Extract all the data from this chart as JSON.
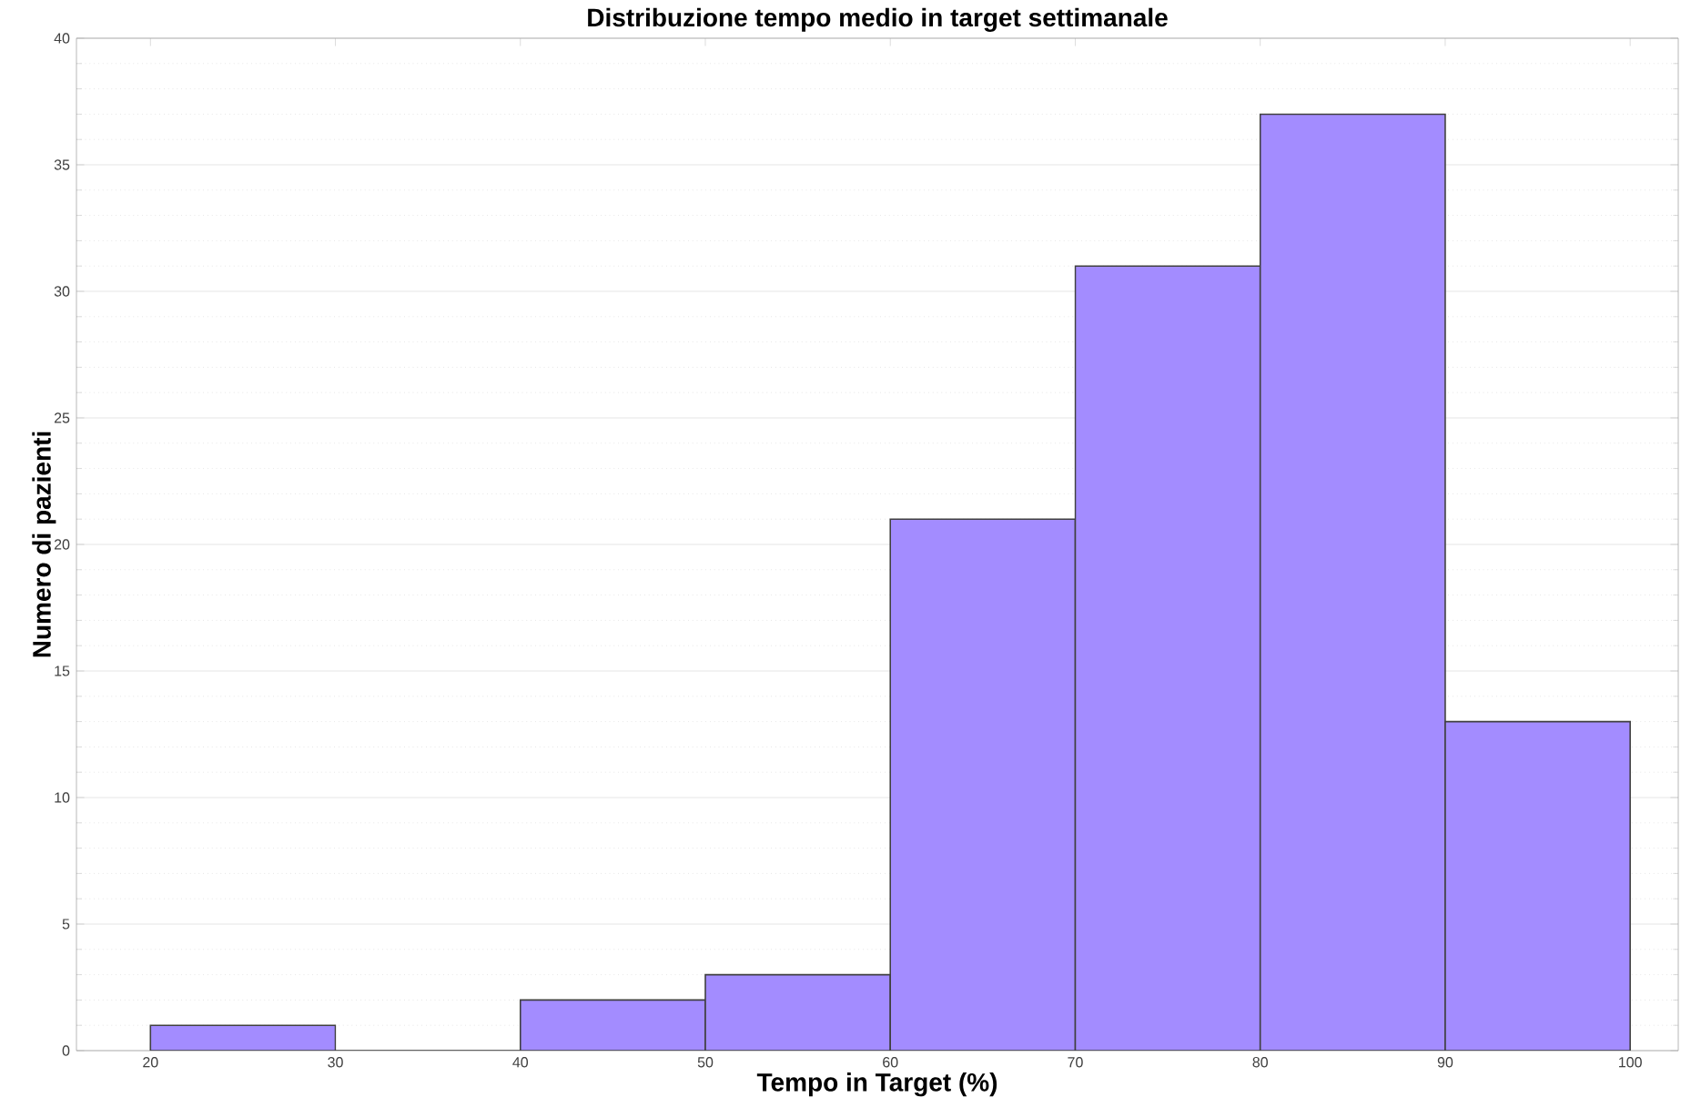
{
  "chart_data": {
    "type": "histogram",
    "title": "Distribuzione tempo medio in target settimanale",
    "xlabel": "Tempo in Target (%)",
    "ylabel": "Numero di pazienti",
    "bins": [
      20,
      30,
      40,
      50,
      60,
      70,
      80,
      90,
      100
    ],
    "values": [
      1,
      0,
      2,
      3,
      21,
      31,
      37,
      13
    ],
    "color": "#a38cff",
    "xlim": [
      16,
      102.6
    ],
    "ylim": [
      0,
      40
    ],
    "xticks": [
      20,
      30,
      40,
      50,
      60,
      70,
      80,
      90,
      100
    ],
    "yticks": [
      0,
      5,
      10,
      15,
      20,
      25,
      30,
      35,
      40
    ],
    "grid": "y"
  }
}
